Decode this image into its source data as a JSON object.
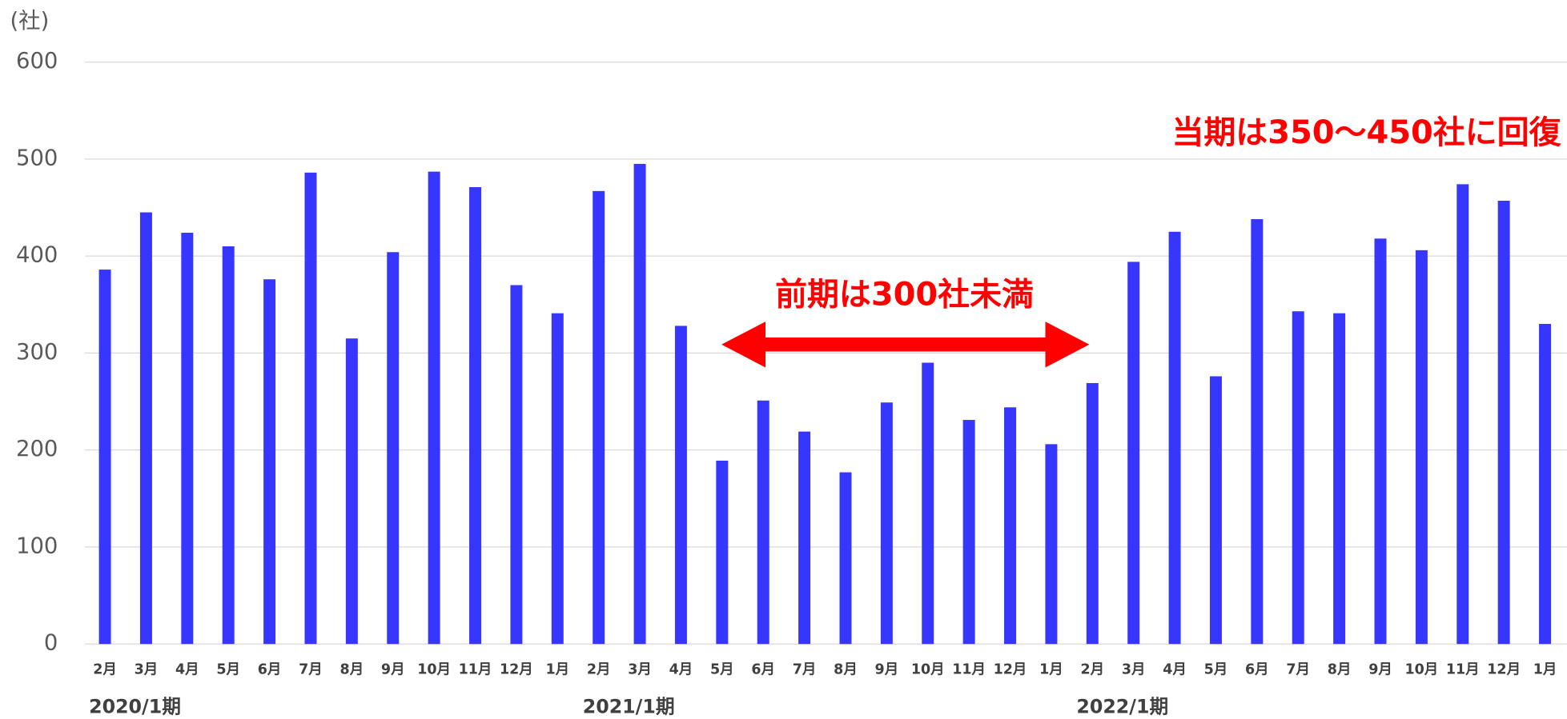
{
  "chart_data": {
    "type": "bar",
    "y_axis_label": "(社)",
    "categories": [
      "2月",
      "3月",
      "4月",
      "5月",
      "6月",
      "7月",
      "8月",
      "9月",
      "10月",
      "11月",
      "12月",
      "1月",
      "2月",
      "3月",
      "4月",
      "5月",
      "6月",
      "7月",
      "8月",
      "9月",
      "10月",
      "11月",
      "12月",
      "1月",
      "2月",
      "3月",
      "4月",
      "5月",
      "6月",
      "7月",
      "8月",
      "9月",
      "10月",
      "11月",
      "12月",
      "1月"
    ],
    "category_groups": [
      "2020/1期",
      "2021/1期",
      "2022/1期"
    ],
    "values": [
      386,
      445,
      424,
      410,
      376,
      486,
      315,
      404,
      487,
      471,
      370,
      341,
      467,
      495,
      328,
      189,
      251,
      219,
      177,
      249,
      290,
      231,
      244,
      206,
      269,
      394,
      425,
      276,
      438,
      343,
      341,
      418,
      406,
      474,
      457,
      330
    ],
    "color": "#3636ff",
    "ylim": [
      0,
      600
    ],
    "yticks": [
      0,
      100,
      200,
      300,
      400,
      500,
      600
    ],
    "grid": true,
    "annotations": [
      "前期は300社未満",
      "当期は350〜450社に回復"
    ]
  }
}
